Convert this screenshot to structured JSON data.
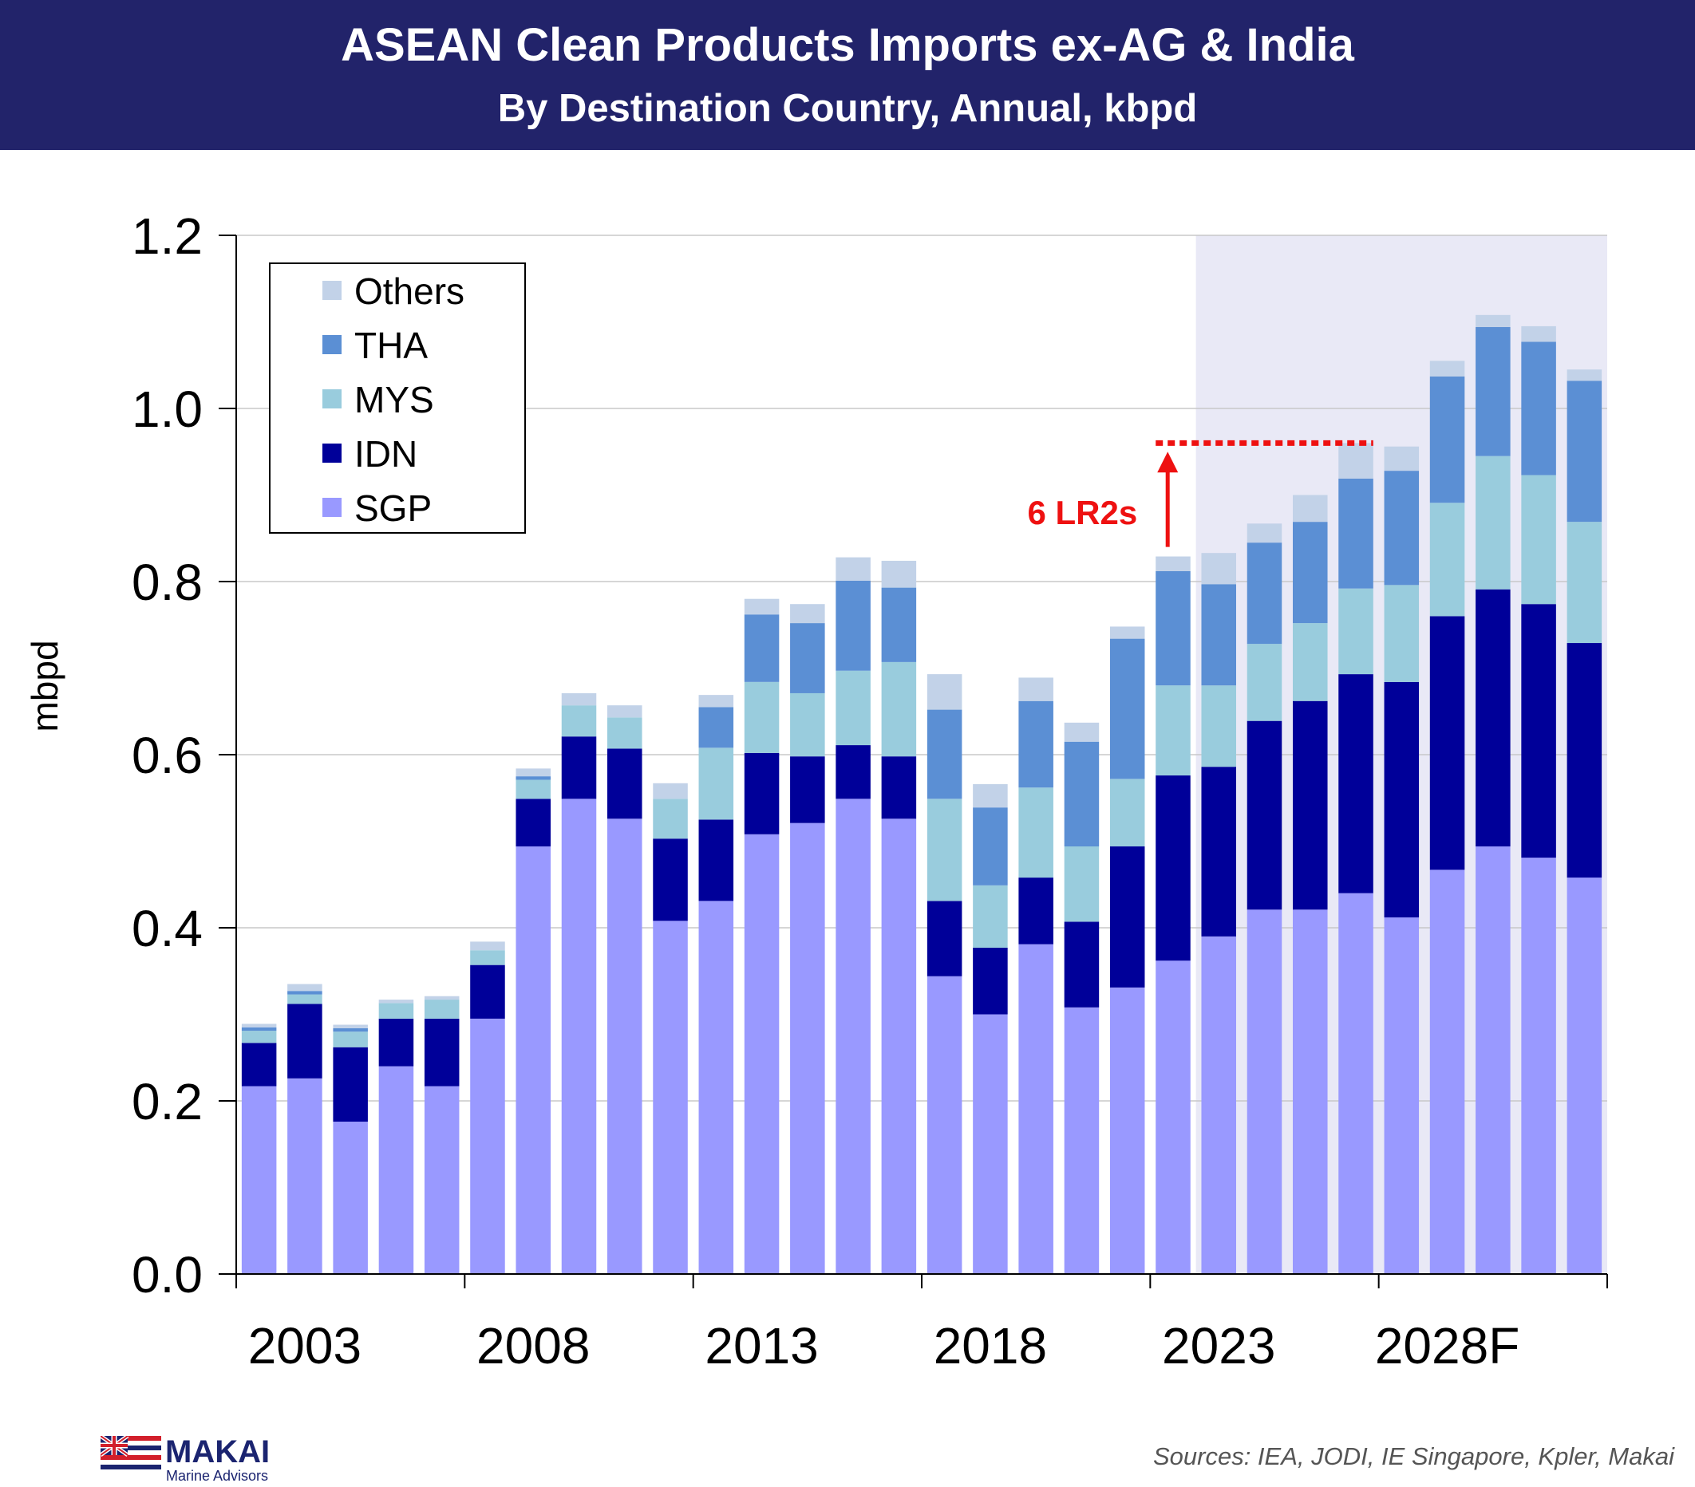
{
  "header": {
    "title": "ASEAN Clean Products Imports ex-AG & India",
    "subtitle": "By Destination Country, Annual, kbpd"
  },
  "footer": {
    "logo_name": "MAKAI",
    "logo_tagline": "Marine Advisors",
    "sources": "Sources: IEA, JODI, IE Singapore, Kpler, Makai"
  },
  "annotation": {
    "label": "6 LR2s",
    "target_level": 0.96,
    "arrow_from": 0.84,
    "arrow_to": 0.95,
    "color": "#ee1111"
  },
  "colors": {
    "header_bg": "#22236a",
    "forecast_shade": "#e9e9f6",
    "grid": "#c8c8c8"
  },
  "chart_data": {
    "type": "bar",
    "stacked": true,
    "ylabel": "mbpd",
    "xlabel": "",
    "ylim": [
      0,
      1.2
    ],
    "yticks": [
      "0.0",
      "0.2",
      "0.4",
      "0.6",
      "0.8",
      "1.0",
      "1.2"
    ],
    "xtick_labels": [
      "2003",
      "2008",
      "2013",
      "2018",
      "2023",
      "2028F"
    ],
    "grid": "horizontal",
    "legend_position": "top-left",
    "forecast_shading_from": "2024",
    "categories": [
      "2003",
      "2004",
      "2005",
      "2006",
      "2007",
      "2008",
      "2009",
      "2010",
      "2011",
      "2012",
      "2013",
      "2014",
      "2015",
      "2016",
      "2017",
      "2018",
      "2019",
      "2020",
      "2021",
      "2022",
      "2023",
      "2024",
      "2025",
      "2026",
      "2027",
      "2028",
      "2029",
      "2030",
      "2031",
      "2032"
    ],
    "series": [
      {
        "name": "SGP",
        "color": "#9999ff",
        "values": [
          0.217,
          0.226,
          0.176,
          0.24,
          0.217,
          0.295,
          0.494,
          0.549,
          0.526,
          0.408,
          0.431,
          0.508,
          0.521,
          0.549,
          0.526,
          0.344,
          0.3,
          0.381,
          0.308,
          0.331,
          0.362,
          0.39,
          0.421,
          0.421,
          0.44,
          0.412,
          0.467,
          0.494,
          0.481,
          0.458
        ]
      },
      {
        "name": "IDN",
        "color": "#000099",
        "values": [
          0.05,
          0.086,
          0.086,
          0.055,
          0.078,
          0.062,
          0.055,
          0.072,
          0.081,
          0.095,
          0.094,
          0.094,
          0.077,
          0.062,
          0.072,
          0.087,
          0.077,
          0.077,
          0.099,
          0.163,
          0.214,
          0.196,
          0.218,
          0.241,
          0.253,
          0.272,
          0.293,
          0.297,
          0.293,
          0.271
        ]
      },
      {
        "name": "MYS",
        "color": "#99ccdd",
        "values": [
          0.014,
          0.011,
          0.018,
          0.018,
          0.022,
          0.017,
          0.022,
          0.036,
          0.036,
          0.046,
          0.083,
          0.082,
          0.073,
          0.086,
          0.109,
          0.118,
          0.072,
          0.104,
          0.087,
          0.078,
          0.104,
          0.094,
          0.089,
          0.09,
          0.099,
          0.112,
          0.131,
          0.154,
          0.149,
          0.14
        ]
      },
      {
        "name": "THA",
        "color": "#5b8fd4",
        "values": [
          0.004,
          0.004,
          0.004,
          0.0,
          0.0,
          0.0,
          0.004,
          0.0,
          0.0,
          0.0,
          0.047,
          0.078,
          0.081,
          0.104,
          0.086,
          0.103,
          0.09,
          0.1,
          0.121,
          0.162,
          0.132,
          0.117,
          0.117,
          0.117,
          0.127,
          0.132,
          0.146,
          0.149,
          0.154,
          0.163
        ]
      },
      {
        "name": "Others",
        "color": "#c2d2e8",
        "values": [
          0.004,
          0.008,
          0.004,
          0.004,
          0.004,
          0.01,
          0.009,
          0.014,
          0.014,
          0.018,
          0.014,
          0.018,
          0.022,
          0.027,
          0.031,
          0.041,
          0.027,
          0.027,
          0.022,
          0.014,
          0.017,
          0.036,
          0.022,
          0.031,
          0.041,
          0.028,
          0.018,
          0.014,
          0.018,
          0.013
        ]
      }
    ]
  }
}
